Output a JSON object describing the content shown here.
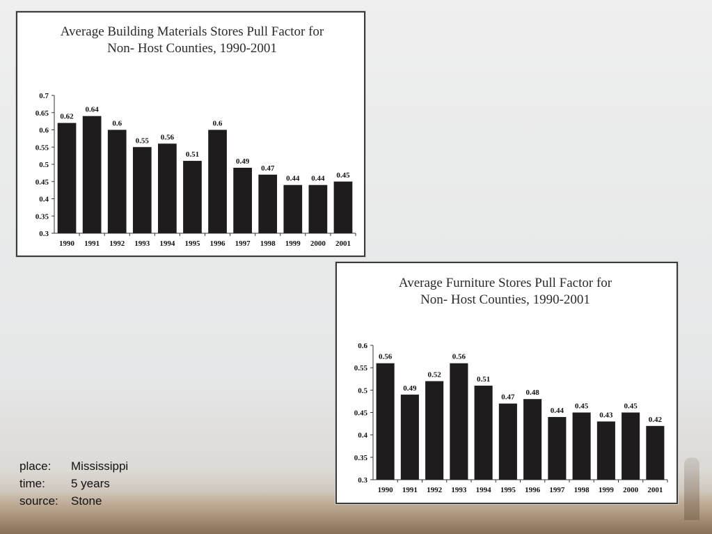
{
  "chart_data": [
    {
      "type": "bar",
      "title": [
        "Average Building Materials Stores Pull Factor for",
        "Non- Host Counties, 1990-2001"
      ],
      "categories": [
        "1990",
        "1991",
        "1992",
        "1993",
        "1994",
        "1995",
        "1996",
        "1997",
        "1998",
        "1999",
        "2000",
        "2001"
      ],
      "values": [
        0.62,
        0.64,
        0.6,
        0.55,
        0.56,
        0.51,
        0.6,
        0.49,
        0.47,
        0.44,
        0.44,
        0.45
      ],
      "value_labels": [
        "0.62",
        "0.64",
        "0.6",
        "0.55",
        "0.56",
        "0.51",
        "0.6",
        "0.49",
        "0.47",
        "0.44",
        "0.44",
        "0.45"
      ],
      "ylim": [
        0.3,
        0.7
      ],
      "yticks": [
        "0.3",
        "0.35",
        "0.4",
        "0.45",
        "0.5",
        "0.55",
        "0.6",
        "0.65",
        "0.7"
      ],
      "xlabel": "",
      "ylabel": "",
      "grid": false,
      "bar_color": "#1f1c1d"
    },
    {
      "type": "bar",
      "title": [
        "Average Furniture Stores Pull Factor for",
        "Non- Host Counties, 1990-2001"
      ],
      "categories": [
        "1990",
        "1991",
        "1992",
        "1993",
        "1994",
        "1995",
        "1996",
        "1997",
        "1998",
        "1999",
        "2000",
        "2001"
      ],
      "values": [
        0.56,
        0.49,
        0.52,
        0.56,
        0.51,
        0.47,
        0.48,
        0.44,
        0.45,
        0.43,
        0.45,
        0.42
      ],
      "value_labels": [
        "0.56",
        "0.49",
        "0.52",
        "0.56",
        "0.51",
        "0.47",
        "0.48",
        "0.44",
        "0.45",
        "0.43",
        "0.45",
        "0.42"
      ],
      "ylim": [
        0.3,
        0.6
      ],
      "yticks": [
        "0.3",
        "0.35",
        "0.4",
        "0.45",
        "0.5",
        "0.55",
        "0.6"
      ],
      "xlabel": "",
      "ylabel": "",
      "grid": false,
      "bar_color": "#1f1c1d"
    }
  ],
  "caption": {
    "place_key": "place:",
    "place_value": "Mississippi",
    "time_key": "time:",
    "time_value": "5 years",
    "source_key": "source:",
    "source_value": "Stone"
  }
}
